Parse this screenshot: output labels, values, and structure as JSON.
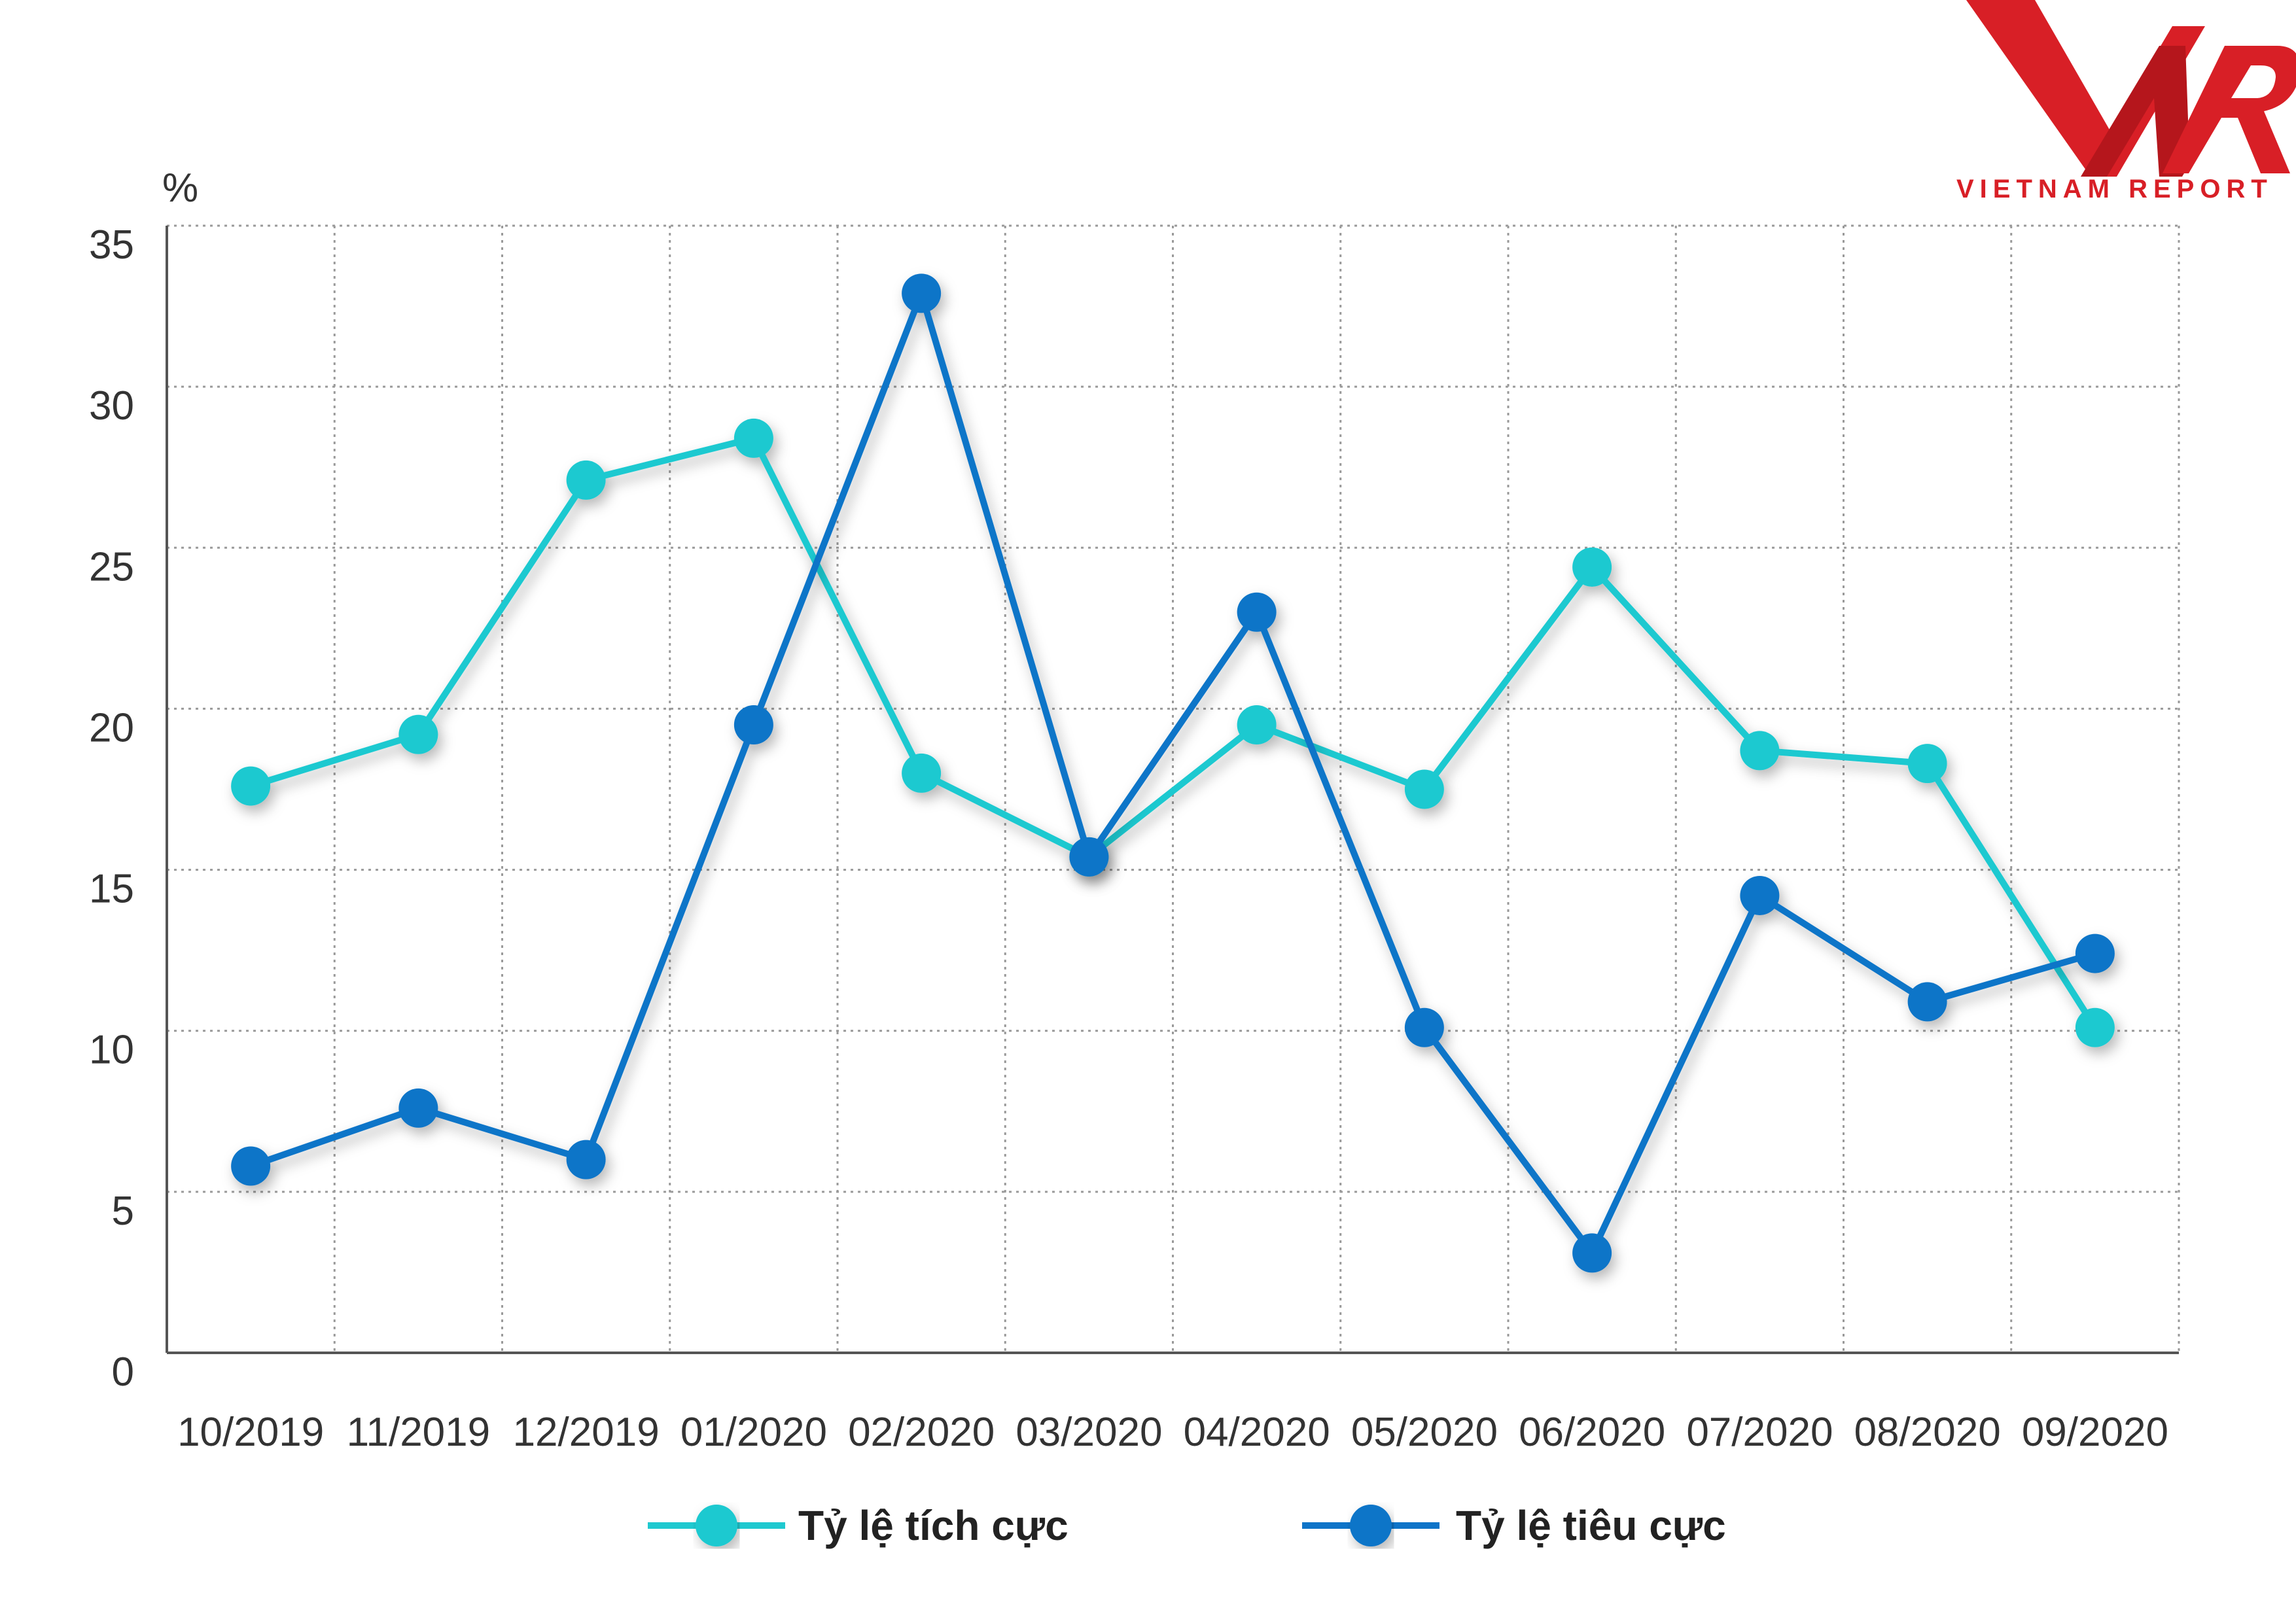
{
  "brand": {
    "logo_text": "VNR",
    "name": "VIETNAM REPORT",
    "color": "#d81f26"
  },
  "chart_data": {
    "type": "line",
    "y_unit": "%",
    "categories": [
      "10/2019",
      "11/2019",
      "12/2019",
      "01/2020",
      "02/2020",
      "03/2020",
      "04/2020",
      "05/2020",
      "06/2020",
      "07/2020",
      "08/2020",
      "09/2020"
    ],
    "ylim": [
      0,
      35
    ],
    "yticks": [
      0,
      5,
      10,
      15,
      20,
      25,
      30,
      35
    ],
    "grid": true,
    "legend_position": "bottom",
    "series": [
      {
        "name": "Tỷ lệ tích cực",
        "color": "#1fc9d0",
        "values": [
          17.6,
          19.2,
          27.1,
          28.4,
          18.0,
          15.4,
          19.5,
          17.5,
          24.4,
          18.7,
          18.3,
          10.1
        ]
      },
      {
        "name": "Tỷ lệ tiêu cực",
        "color": "#0e74c8",
        "values": [
          5.8,
          7.6,
          6.0,
          19.5,
          32.9,
          15.4,
          23.0,
          10.1,
          3.1,
          14.2,
          10.9,
          12.4
        ]
      }
    ]
  }
}
